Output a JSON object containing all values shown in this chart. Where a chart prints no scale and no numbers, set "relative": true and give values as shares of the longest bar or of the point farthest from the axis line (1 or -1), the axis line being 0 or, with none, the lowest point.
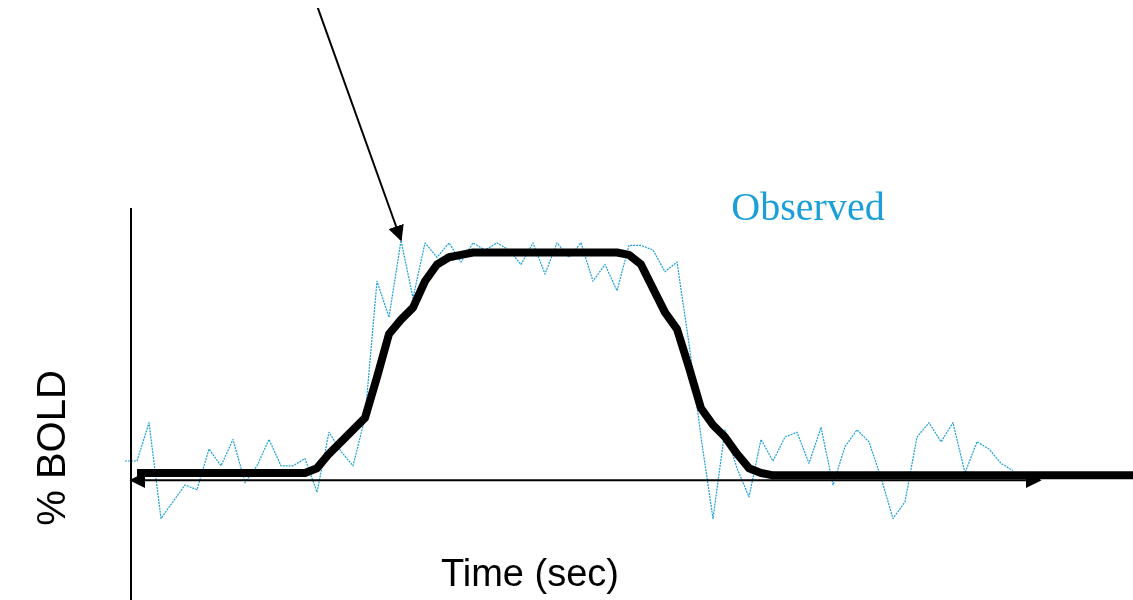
{
  "chart_data": {
    "type": "line",
    "relative": true,
    "xlabel": "Time (sec)",
    "ylabel": "% BOLD",
    "legend": false,
    "grid": false,
    "marker": "none",
    "categories": [
      null,
      null,
      null,
      null,
      null,
      null,
      null,
      null,
      null,
      null,
      null,
      null,
      null,
      null,
      null,
      null,
      null,
      null,
      null,
      null,
      null,
      null,
      null,
      null,
      null,
      null,
      null,
      null,
      null,
      null,
      null,
      null,
      null,
      null,
      null,
      null,
      null,
      null,
      null,
      null,
      null,
      null,
      null,
      null,
      null,
      null,
      null,
      null,
      null,
      null,
      null,
      null,
      null,
      null,
      null,
      null,
      null,
      null,
      null,
      null,
      null,
      null,
      null,
      null,
      null,
      null,
      null,
      null,
      null,
      null,
      null,
      null,
      null,
      null,
      null,
      null,
      null,
      null,
      null,
      null,
      null,
      null,
      null,
      null,
      null
    ],
    "series": [
      {
        "name": "Observed",
        "color": "#1a9fd9",
        "line_style": "dotted",
        "values": [
          0.08,
          0.08,
          0.24,
          -0.16,
          -0.09,
          -0.02,
          -0.04,
          0.13,
          0.06,
          0.17,
          -0.01,
          0.06,
          0.17,
          0.06,
          0.06,
          0.09,
          -0.05,
          0.2,
          0.12,
          0.06,
          0.26,
          0.83,
          0.68,
          1,
          0.76,
          0.99,
          0.93,
          0.99,
          0.91,
          0.99,
          0.96,
          0.99,
          0.96,
          0.9,
          0.99,
          0.86,
          0.99,
          0.93,
          0.99,
          0.83,
          0.9,
          0.79,
          0.98,
          0.98,
          0.96,
          0.87,
          0.91,
          0.57,
          0.18,
          -0.16,
          0.21,
          0.05,
          -0.07,
          0.17,
          0.08,
          0.18,
          0.2,
          0.07,
          0.22,
          -0.02,
          0.14,
          0.21,
          0.16,
          0.01,
          -0.16,
          -0.09,
          0.18,
          0.24,
          0.16,
          0.24,
          0.03,
          0.16,
          0.13,
          0.07,
          0.04,
          null,
          null,
          null,
          null,
          null,
          null,
          null,
          null,
          null,
          null
        ]
      },
      {
        "color": "#000000",
        "line_style": "solid",
        "values": [
          null,
          0.03,
          0.03,
          0.03,
          0.03,
          0.03,
          0.03,
          0.03,
          0.03,
          0.03,
          0.03,
          0.03,
          0.03,
          0.03,
          0.03,
          0.03,
          0.05,
          0.11,
          0.16,
          0.21,
          0.26,
          0.43,
          0.61,
          0.67,
          0.72,
          0.83,
          0.9,
          0.93,
          0.94,
          0.95,
          0.95,
          0.95,
          0.95,
          0.95,
          0.95,
          0.95,
          0.95,
          0.95,
          0.95,
          0.95,
          0.95,
          0.95,
          0.94,
          0.9,
          0.8,
          0.7,
          0.63,
          0.47,
          0.3,
          0.23,
          0.18,
          0.11,
          0.05,
          0.03,
          0.02,
          0.02,
          0.02,
          0.02,
          0.02,
          0.02,
          0.02,
          0.02,
          0.02,
          0.02,
          0.02,
          0.02,
          0.02,
          0.02,
          0.02,
          0.02,
          0.02,
          0.02,
          0.02,
          0.02,
          0.02,
          0.02,
          0.02,
          0.02,
          0.02,
          0.02,
          0.02,
          0.02,
          0.02,
          0.02,
          0.02
        ]
      }
    ]
  }
}
